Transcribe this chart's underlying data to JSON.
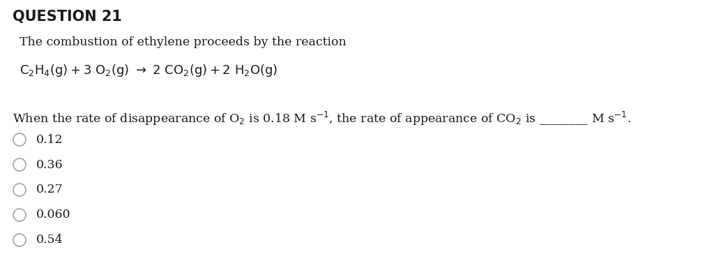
{
  "title": "QUESTION 21",
  "intro_text": "The combustion of ethylene proceeds by the reaction",
  "bg_color": "#ffffff",
  "text_color": "#1a1a1a",
  "title_color": "#1a1a1a",
  "choices": [
    "0.12",
    "0.36",
    "0.27",
    "0.060",
    "0.54"
  ],
  "fig_width": 10.24,
  "fig_height": 3.94,
  "dpi": 100
}
